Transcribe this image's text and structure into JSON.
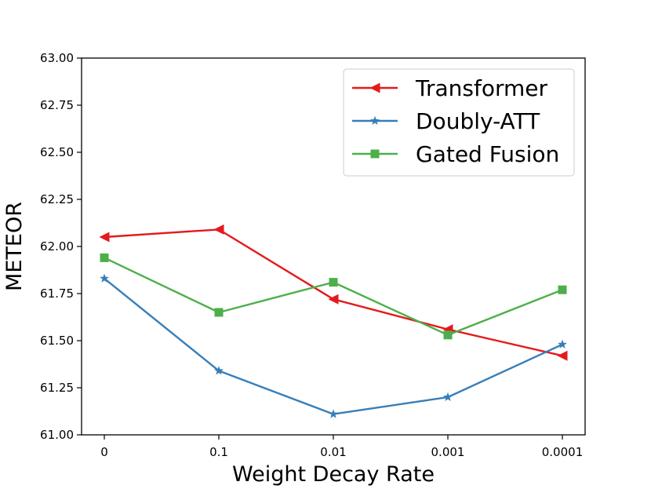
{
  "chart_data": {
    "type": "line",
    "title": "",
    "xlabel": "Weight Decay Rate",
    "ylabel": "METEOR",
    "categories": [
      "0",
      "0.1",
      "0.01",
      "0.001",
      "0.0001"
    ],
    "ylim": [
      61.0,
      63.0
    ],
    "yticks": [
      "61.00",
      "61.25",
      "61.50",
      "61.75",
      "62.00",
      "62.25",
      "62.50",
      "62.75",
      "63.00"
    ],
    "ytick_values": [
      61.0,
      61.25,
      61.5,
      61.75,
      62.0,
      62.25,
      62.5,
      62.75,
      63.0
    ],
    "grid": false,
    "legend_position": "top-right",
    "series": [
      {
        "name": "Transformer",
        "color": "#e41a1c",
        "marker": "triangle-left",
        "values": [
          62.05,
          62.09,
          61.72,
          61.56,
          61.42
        ]
      },
      {
        "name": "Doubly-ATT",
        "color": "#377eb8",
        "marker": "star",
        "values": [
          61.83,
          61.34,
          61.11,
          61.2,
          61.48
        ]
      },
      {
        "name": "Gated Fusion",
        "color": "#4daf4a",
        "marker": "square",
        "values": [
          61.94,
          61.65,
          61.81,
          61.53,
          61.77
        ]
      }
    ]
  }
}
